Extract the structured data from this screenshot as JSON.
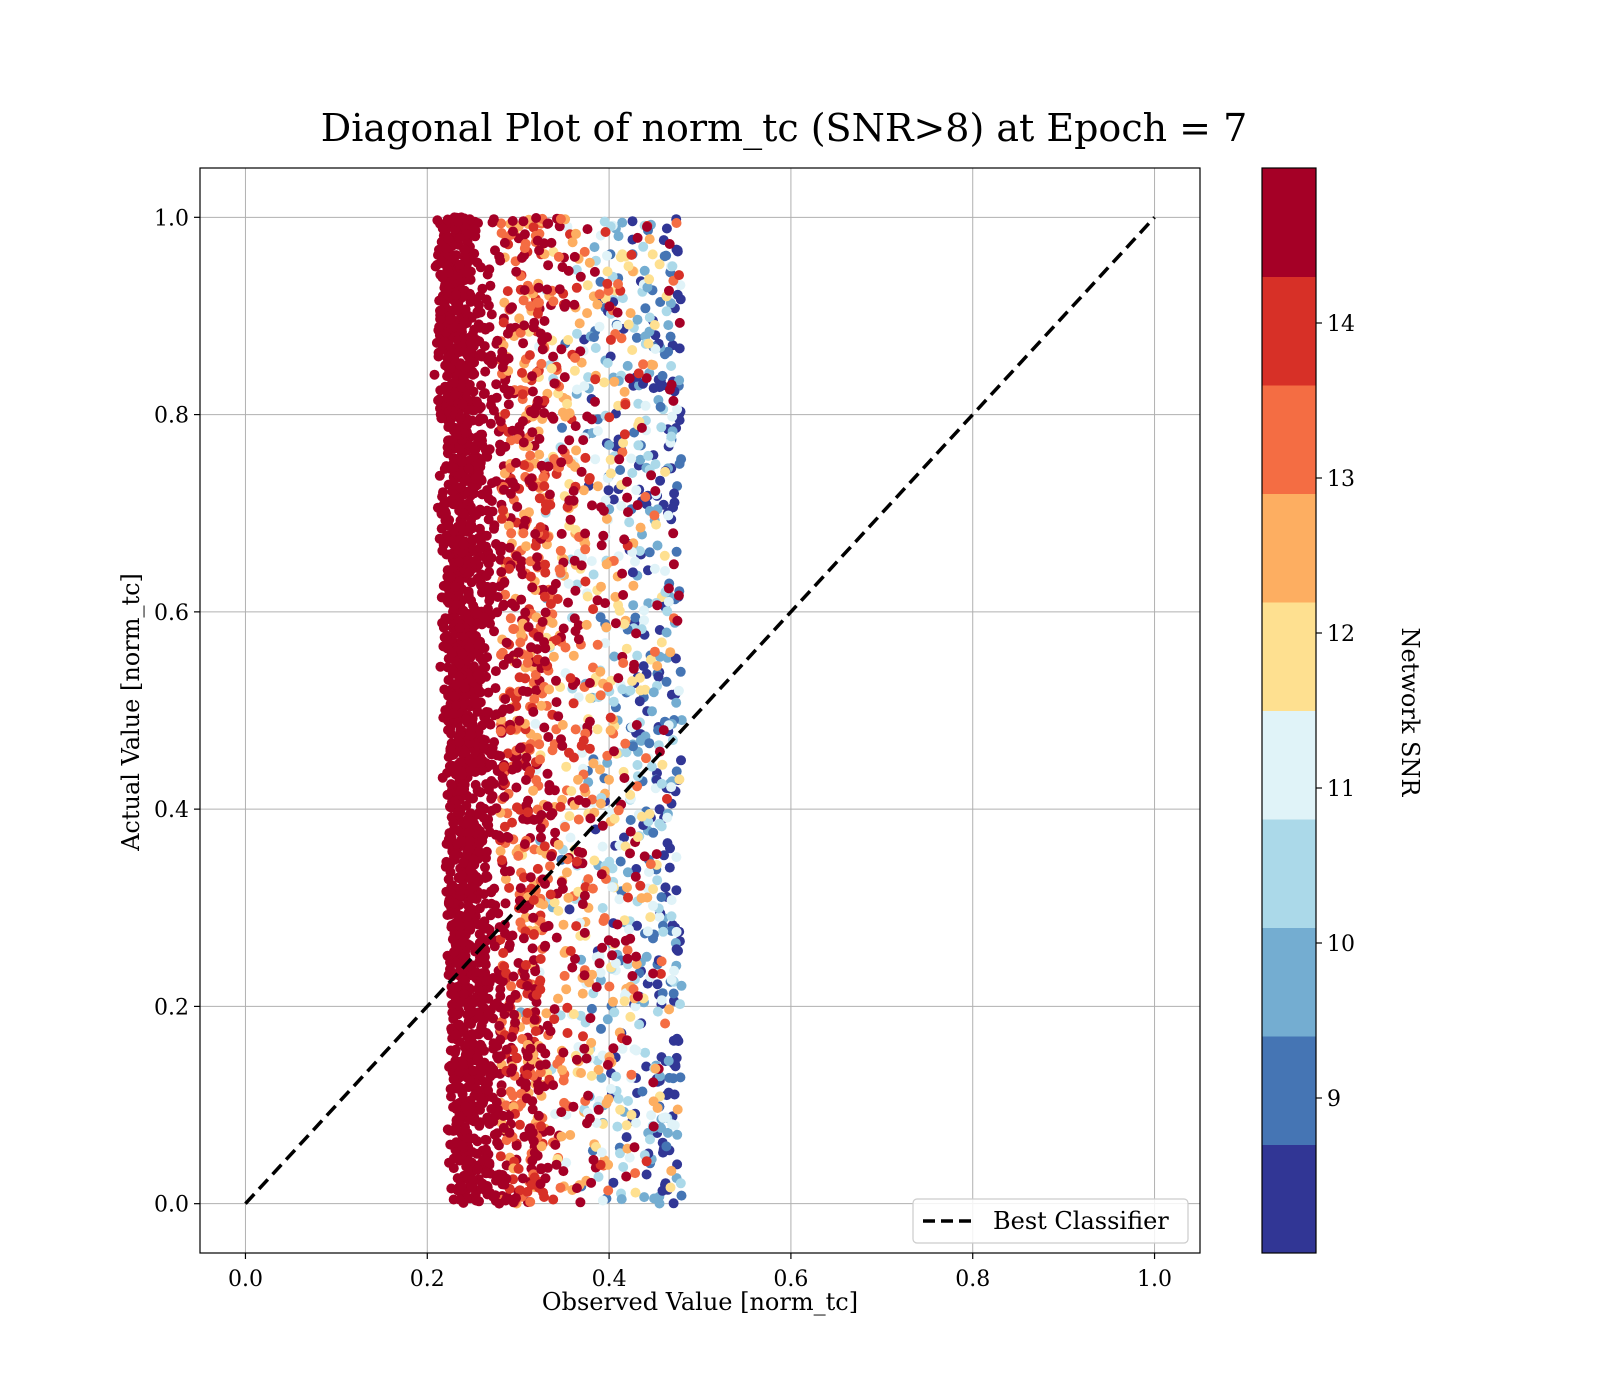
{
  "chart_data": {
    "type": "scatter",
    "title": "Diagonal Plot of norm_tc (SNR>8) at Epoch = 7",
    "xlabel": "Observed Value [norm_tc]",
    "ylabel": "Actual Value [norm_tc]",
    "xlim": [
      -0.05,
      1.05
    ],
    "ylim": [
      -0.05,
      1.05
    ],
    "xticks": [
      0.0,
      0.2,
      0.4,
      0.6,
      0.8,
      1.0
    ],
    "yticks": [
      0.0,
      0.2,
      0.4,
      0.6,
      0.8,
      1.0
    ],
    "xtick_labels": [
      "0.0",
      "0.2",
      "0.4",
      "0.6",
      "0.8",
      "1.0"
    ],
    "ytick_labels": [
      "0.0",
      "0.2",
      "0.4",
      "0.6",
      "0.8",
      "1.0"
    ],
    "grid": true,
    "legend": {
      "placement": "lower-right",
      "entries": [
        {
          "label": "Best Classifier",
          "style": "dashed",
          "color": "#000000"
        }
      ]
    },
    "reference_line": {
      "name": "Best Classifier",
      "x": [
        0.0,
        1.0
      ],
      "y": [
        0.0,
        1.0
      ]
    },
    "scatter_summary": {
      "x_range": [
        0.19,
        0.51
      ],
      "y_range": [
        0.0,
        1.0
      ],
      "dense_core_x_range": [
        0.2,
        0.3
      ],
      "high_snr_region": "x 0.20–0.30",
      "low_snr_region": "x 0.35–0.48"
    },
    "colorbar": {
      "label": "Network SNR",
      "range": [
        8.0,
        15.0
      ],
      "ticks": [
        9,
        10,
        11,
        12,
        13,
        14
      ],
      "tick_labels": [
        "9",
        "10",
        "11",
        "12",
        "13",
        "14"
      ],
      "colors": [
        "#313695",
        "#4575b4",
        "#74add1",
        "#abd9e9",
        "#e0f3f8",
        "#fee090",
        "#fdae61",
        "#f46d43",
        "#d73027",
        "#a50026"
      ]
    }
  }
}
